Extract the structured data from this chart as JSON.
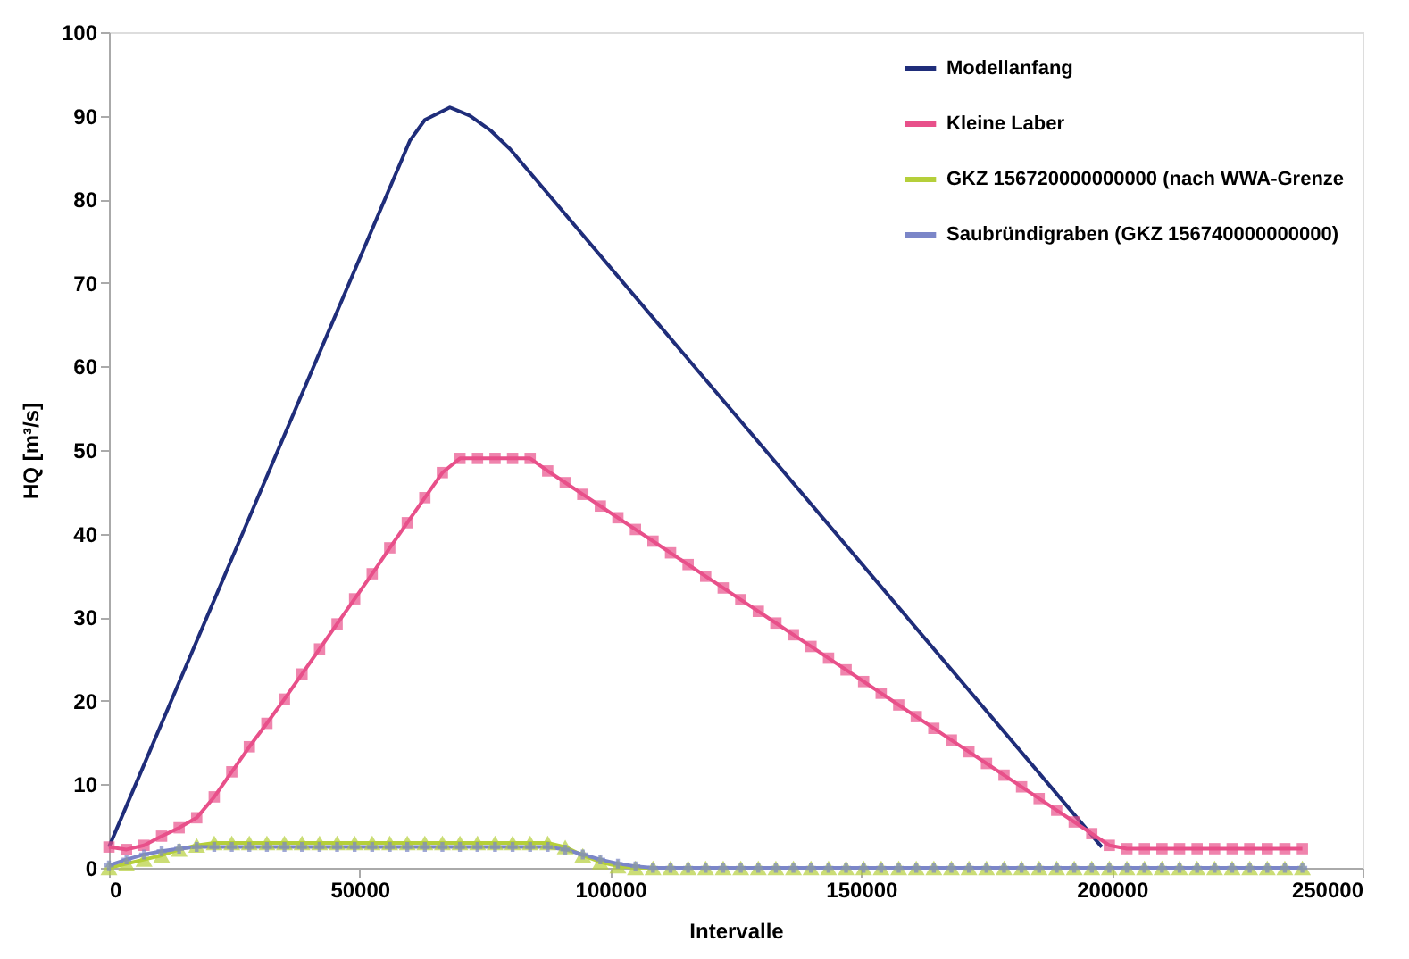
{
  "chart_data": {
    "type": "line",
    "xlabel": "Intervalle",
    "ylabel": "HQ [m³/s]",
    "x": [
      0,
      3500,
      7000,
      10500,
      14000,
      17500,
      21000,
      24500,
      28000,
      31500,
      35000,
      38500,
      42000,
      45500,
      49000,
      52500,
      56000,
      59500,
      63000,
      66500,
      70000,
      73500,
      77000,
      80500,
      84000,
      87500,
      91000,
      94500,
      98000,
      101500,
      105000,
      108500,
      112000,
      115500,
      119000,
      122500,
      126000,
      129500,
      133000,
      136500,
      140000,
      143500,
      147000,
      150500,
      154000,
      157500,
      161000,
      164500,
      168000,
      171500,
      175000,
      178500,
      182000,
      185500,
      189000,
      192500,
      196000,
      199500,
      203000,
      206500,
      210000,
      213500,
      217000,
      220500,
      224000,
      227500,
      231000,
      234500,
      238000
    ],
    "series": [
      {
        "name": "Modellanfang",
        "color": "#1f2d7a",
        "marker": "none",
        "x": [
          0,
          60000,
          63000,
          68000,
          72000,
          76000,
          80000,
          198000
        ],
        "values": [
          2.5,
          87,
          89.5,
          91,
          90,
          88.3,
          86,
          2.5
        ]
      },
      {
        "name": "Kleine Laber",
        "color": "#e8508a",
        "marker": "square",
        "values": [
          2.5,
          2.2,
          2.7,
          3.8,
          4.8,
          6,
          8.5,
          11.5,
          14.5,
          17.3,
          20.2,
          23.2,
          26.2,
          29.2,
          32.2,
          35.2,
          38.3,
          41.3,
          44.3,
          47.3,
          49,
          49,
          49,
          49,
          49,
          47.5,
          46.1,
          44.7,
          43.3,
          41.9,
          40.5,
          39.1,
          37.7,
          36.3,
          34.9,
          33.5,
          32.1,
          30.7,
          29.3,
          27.9,
          26.5,
          25.1,
          23.7,
          22.3,
          20.9,
          19.5,
          18.1,
          16.7,
          15.3,
          13.9,
          12.5,
          11.1,
          9.7,
          8.3,
          6.9,
          5.5,
          4.1,
          2.7,
          2.3,
          2.3,
          2.3,
          2.3,
          2.3,
          2.3,
          2.3,
          2.3,
          2.3,
          2.3,
          2.3
        ]
      },
      {
        "name": "GKZ 156720000000000 (nach WWA-Grenze",
        "color": "#b5cf3a",
        "marker": "triangle",
        "values": [
          0,
          0.5,
          1,
          1.5,
          2.2,
          2.7,
          3,
          3,
          3,
          3,
          3,
          3,
          3,
          3,
          3,
          3,
          3,
          3,
          3,
          3,
          3,
          3,
          3,
          3,
          3,
          3,
          2.5,
          1.5,
          0.7,
          0.2,
          0,
          0,
          0,
          0,
          0,
          0,
          0,
          0,
          0,
          0,
          0,
          0,
          0,
          0,
          0,
          0,
          0,
          0,
          0,
          0,
          0,
          0,
          0,
          0,
          0,
          0,
          0,
          0,
          0,
          0,
          0,
          0,
          0,
          0,
          0,
          0,
          0,
          0,
          0
        ]
      },
      {
        "name": "Saubründigraben (GKZ 156740000000000)",
        "color": "#7b86c8",
        "marker": "cross",
        "values": [
          0.3,
          1,
          1.6,
          2,
          2.3,
          2.5,
          2.5,
          2.5,
          2.5,
          2.5,
          2.5,
          2.5,
          2.5,
          2.5,
          2.5,
          2.5,
          2.5,
          2.5,
          2.5,
          2.5,
          2.5,
          2.5,
          2.5,
          2.5,
          2.5,
          2.5,
          2.2,
          1.6,
          1,
          0.5,
          0.2,
          0,
          0,
          0,
          0,
          0,
          0,
          0,
          0,
          0,
          0,
          0,
          0,
          0,
          0,
          0,
          0,
          0,
          0,
          0,
          0,
          0,
          0,
          0,
          0,
          0,
          0,
          0,
          0,
          0,
          0,
          0,
          0,
          0,
          0,
          0,
          0,
          0,
          0
        ]
      }
    ],
    "xlim": [
      0,
      250000
    ],
    "xticks": [
      0,
      50000,
      100000,
      150000,
      200000,
      250000
    ],
    "ylim": [
      0,
      100
    ],
    "yticks": [
      0,
      10,
      20,
      30,
      40,
      50,
      60,
      70,
      80,
      90,
      100
    ],
    "grid": false,
    "legend": "top right"
  }
}
